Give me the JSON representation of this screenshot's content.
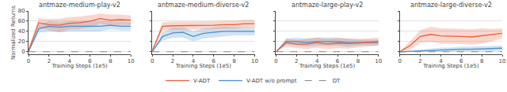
{
  "chart_data": [
    {
      "type": "line",
      "title": "antmaze-medium-play-v2",
      "xlabel": "Training Steps (1e5)",
      "ylabel": "Normalized Returns",
      "x": [
        0,
        1,
        2,
        3,
        4,
        5,
        6,
        7,
        8,
        9,
        10
      ],
      "xlim": [
        0,
        10
      ],
      "ylim": [
        -5,
        80
      ],
      "xticks": [
        0,
        2,
        4,
        6,
        8,
        10
      ],
      "yticks": [
        0,
        20,
        40,
        60,
        80
      ],
      "grid": true,
      "legend": "bottom",
      "series": [
        {
          "name": "V-ADT",
          "color": "#e8603c",
          "line_style": "solid",
          "values": [
            2,
            57,
            53,
            52,
            56,
            57,
            60,
            65,
            62,
            63,
            62
          ],
          "lower": [
            0,
            48,
            42,
            39,
            44,
            45,
            48,
            55,
            51,
            53,
            53
          ],
          "upper": [
            4,
            66,
            64,
            65,
            68,
            69,
            72,
            75,
            73,
            73,
            71
          ]
        },
        {
          "name": "V-ADT w/o prompt",
          "color": "#4c8fcc",
          "line_style": "solid",
          "values": [
            0,
            45,
            50,
            48,
            50,
            50,
            50,
            50,
            52,
            50,
            50
          ],
          "lower": [
            0,
            37,
            40,
            38,
            40,
            40,
            40,
            40,
            44,
            42,
            42
          ],
          "upper": [
            0,
            53,
            60,
            58,
            60,
            60,
            60,
            60,
            60,
            58,
            58
          ]
        },
        {
          "name": "DT",
          "color": "#888888",
          "line_style": "dashed",
          "values": [
            0,
            0,
            0,
            0,
            0,
            0,
            0,
            0,
            0,
            0,
            0
          ]
        }
      ]
    },
    {
      "type": "line",
      "title": "antmaze-medium-diverse-v2",
      "xlabel": "Training Steps (1e5)",
      "x": [
        0,
        1,
        2,
        3,
        4,
        5,
        6,
        7,
        8,
        9,
        10
      ],
      "xlim": [
        0,
        10
      ],
      "ylim": [
        -5,
        80
      ],
      "xticks": [
        0,
        2,
        4,
        6,
        8,
        10
      ],
      "yticks": [
        0,
        20,
        40,
        60,
        80
      ],
      "grid": true,
      "tick_labels": "x",
      "series": [
        {
          "name": "V-ADT",
          "color": "#e8603c",
          "line_style": "solid",
          "values": [
            2,
            50,
            51,
            51,
            52,
            51,
            52,
            53,
            53,
            55,
            55
          ],
          "lower": [
            0,
            42,
            43,
            43,
            44,
            43,
            44,
            45,
            45,
            47,
            47
          ],
          "upper": [
            4,
            58,
            59,
            59,
            60,
            59,
            60,
            61,
            61,
            63,
            63
          ]
        },
        {
          "name": "V-ADT w/o prompt",
          "color": "#4c8fcc",
          "line_style": "solid",
          "values": [
            0,
            30,
            37,
            38,
            30,
            36,
            38,
            40,
            40,
            40,
            40
          ],
          "lower": [
            0,
            22,
            27,
            28,
            20,
            26,
            28,
            30,
            32,
            32,
            32
          ],
          "upper": [
            0,
            38,
            47,
            48,
            40,
            46,
            48,
            50,
            48,
            48,
            48
          ]
        },
        {
          "name": "DT",
          "color": "#888888",
          "line_style": "dashed",
          "values": [
            0,
            0,
            0,
            0,
            0,
            0,
            0,
            0,
            0,
            0,
            0
          ]
        }
      ]
    },
    {
      "type": "line",
      "title": "antmaze-large-play-v2",
      "xlabel": "Training Steps (1e5)",
      "x": [
        0,
        1,
        2,
        3,
        4,
        5,
        6,
        7,
        8,
        9,
        10
      ],
      "xlim": [
        0,
        10
      ],
      "ylim": [
        -5,
        80
      ],
      "xticks": [
        0,
        2,
        4,
        6,
        8,
        10
      ],
      "yticks": [
        0,
        20,
        40,
        60,
        80
      ],
      "grid": true,
      "tick_labels": "x",
      "series": [
        {
          "name": "V-ADT",
          "color": "#e8603c",
          "line_style": "solid",
          "values": [
            0,
            18,
            15,
            15,
            18,
            15,
            17,
            16,
            17,
            18,
            20
          ],
          "lower": [
            0,
            10,
            7,
            5,
            8,
            5,
            7,
            6,
            9,
            10,
            12
          ],
          "upper": [
            0,
            26,
            23,
            25,
            28,
            25,
            27,
            26,
            25,
            26,
            28
          ]
        },
        {
          "name": "V-ADT w/o prompt",
          "color": "#4c8fcc",
          "line_style": "solid",
          "values": [
            0,
            20,
            20,
            18,
            20,
            20,
            20,
            18,
            18,
            18,
            18
          ],
          "lower": [
            0,
            14,
            12,
            10,
            12,
            12,
            12,
            10,
            12,
            12,
            12
          ],
          "upper": [
            0,
            26,
            28,
            26,
            28,
            28,
            28,
            26,
            24,
            24,
            24
          ]
        },
        {
          "name": "DT",
          "color": "#888888",
          "line_style": "dashed",
          "values": [
            0,
            0,
            0,
            0,
            0,
            0,
            0,
            0,
            0,
            0,
            0
          ]
        }
      ]
    },
    {
      "type": "line",
      "title": "antmaze-large-diverse-v2",
      "xlabel": "Training Steps (1e5)",
      "x": [
        0,
        1,
        2,
        3,
        4,
        5,
        6,
        7,
        8,
        9,
        10
      ],
      "xlim": [
        0,
        10
      ],
      "ylim": [
        -5,
        80
      ],
      "xticks": [
        0,
        2,
        4,
        6,
        8,
        10
      ],
      "yticks": [
        0,
        20,
        40,
        60,
        80
      ],
      "grid": true,
      "tick_labels": "x",
      "series": [
        {
          "name": "V-ADT",
          "color": "#e8603c",
          "line_style": "solid",
          "values": [
            0,
            12,
            30,
            34,
            31,
            31,
            30,
            29,
            31,
            33,
            36
          ],
          "lower": [
            0,
            4,
            18,
            19,
            16,
            16,
            15,
            14,
            16,
            21,
            26
          ],
          "upper": [
            0,
            20,
            42,
            49,
            46,
            46,
            45,
            44,
            46,
            45,
            46
          ]
        },
        {
          "name": "V-ADT w/o prompt",
          "color": "#4c8fcc",
          "line_style": "solid",
          "values": [
            0,
            1,
            2,
            3,
            4,
            4,
            5,
            5,
            6,
            6,
            7
          ],
          "lower": [
            0,
            0,
            0,
            0,
            0,
            0,
            0,
            0,
            1,
            1,
            2
          ],
          "upper": [
            0,
            2,
            4,
            6,
            8,
            8,
            10,
            10,
            11,
            11,
            12
          ]
        },
        {
          "name": "DT",
          "color": "#888888",
          "line_style": "dashed",
          "values": [
            0,
            0,
            0,
            0,
            0,
            0,
            0,
            0,
            0,
            0,
            0
          ]
        }
      ]
    }
  ]
}
